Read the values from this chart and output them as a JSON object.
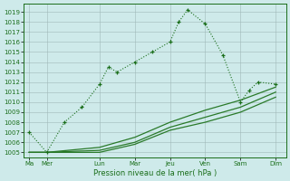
{
  "xlabel": "Pression niveau de la mer( hPa )",
  "background_color": "#ceeaea",
  "grid_color": "#a0b8b8",
  "line_color_main": "#1a6e1a",
  "line_color_secondary": "#2a7a2a",
  "yticks": [
    1005,
    1006,
    1007,
    1008,
    1009,
    1010,
    1011,
    1012,
    1013,
    1014,
    1015,
    1016,
    1017,
    1018,
    1019
  ],
  "x_labels": [
    "Ma",
    "Mer",
    "Lun",
    "Mar",
    "Jeu",
    "Ven",
    "Sam",
    "Dim"
  ],
  "x_tick_positions": [
    0,
    0.5,
    2,
    3,
    4,
    5,
    6,
    7
  ],
  "series1_x": [
    0,
    0.5,
    1.0,
    1.5,
    2.0,
    2.25,
    2.5,
    3.0,
    3.5,
    4.0,
    4.25,
    4.5,
    5.0,
    5.5,
    6.0,
    6.25,
    6.5,
    7.0
  ],
  "series1_y": [
    1007,
    1005,
    1008,
    1009.5,
    1011.8,
    1013.5,
    1013.0,
    1014.0,
    1015.0,
    1016.0,
    1018.0,
    1019.2,
    1017.8,
    1014.7,
    1010.0,
    1011.2,
    1012.0,
    1011.8
  ],
  "series2_x": [
    0,
    0.5,
    2.0,
    3.0,
    4.0,
    5.0,
    6.0,
    7.0
  ],
  "series2_y": [
    1005,
    1005,
    1005.5,
    1006.5,
    1008.0,
    1009.2,
    1010.2,
    1011.5
  ],
  "series3_x": [
    0,
    0.5,
    2.0,
    3.0,
    4.0,
    5.0,
    6.0,
    7.0
  ],
  "series3_y": [
    1005,
    1005,
    1005.2,
    1006.0,
    1007.5,
    1008.5,
    1009.5,
    1011.0
  ],
  "series4_x": [
    0,
    0.5,
    2.0,
    3.0,
    4.0,
    5.0,
    6.0,
    7.0
  ],
  "series4_y": [
    1005,
    1005,
    1005.0,
    1005.8,
    1007.2,
    1008.0,
    1009.0,
    1010.5
  ]
}
